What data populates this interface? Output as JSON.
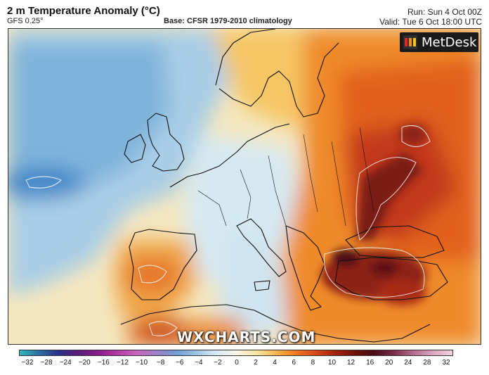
{
  "header": {
    "title": "2 m Temperature Anomaly (°C)",
    "model": "GFS 0.25°",
    "base": "Base: CFSR 1979-2010 climatology",
    "run": "Run: Sun 4 Oct 00Z",
    "valid": "Valid: Tue 6 Oct 18:00 UTC"
  },
  "logo": {
    "text": "MetDesk",
    "icon": "metdesk-logo-icon"
  },
  "watermark": "WXCHARTS.COM",
  "legend": {
    "ticks": [
      "−32",
      "−28",
      "−24",
      "−20",
      "−16",
      "−12",
      "−10",
      "−8",
      "−6",
      "−4",
      "−2",
      "0",
      "2",
      "4",
      "6",
      "8",
      "10",
      "12",
      "16",
      "20",
      "24",
      "28",
      "32"
    ],
    "colors": [
      "#2fb9b9",
      "#2a6fa8",
      "#2b2f88",
      "#5a1a7a",
      "#8b1d8f",
      "#b53aa6",
      "#c865c0",
      "#9c80c9",
      "#6e9fd3",
      "#9ec6e6",
      "#d9ecf6",
      "#f7f3e8",
      "#fbe7a6",
      "#f6b84e",
      "#ee7a22",
      "#d94a18",
      "#a8220f",
      "#6e1208",
      "#4a0a14",
      "#7a2b4a",
      "#b66a8c",
      "#dca6c0",
      "#f2d2e2"
    ]
  }
}
